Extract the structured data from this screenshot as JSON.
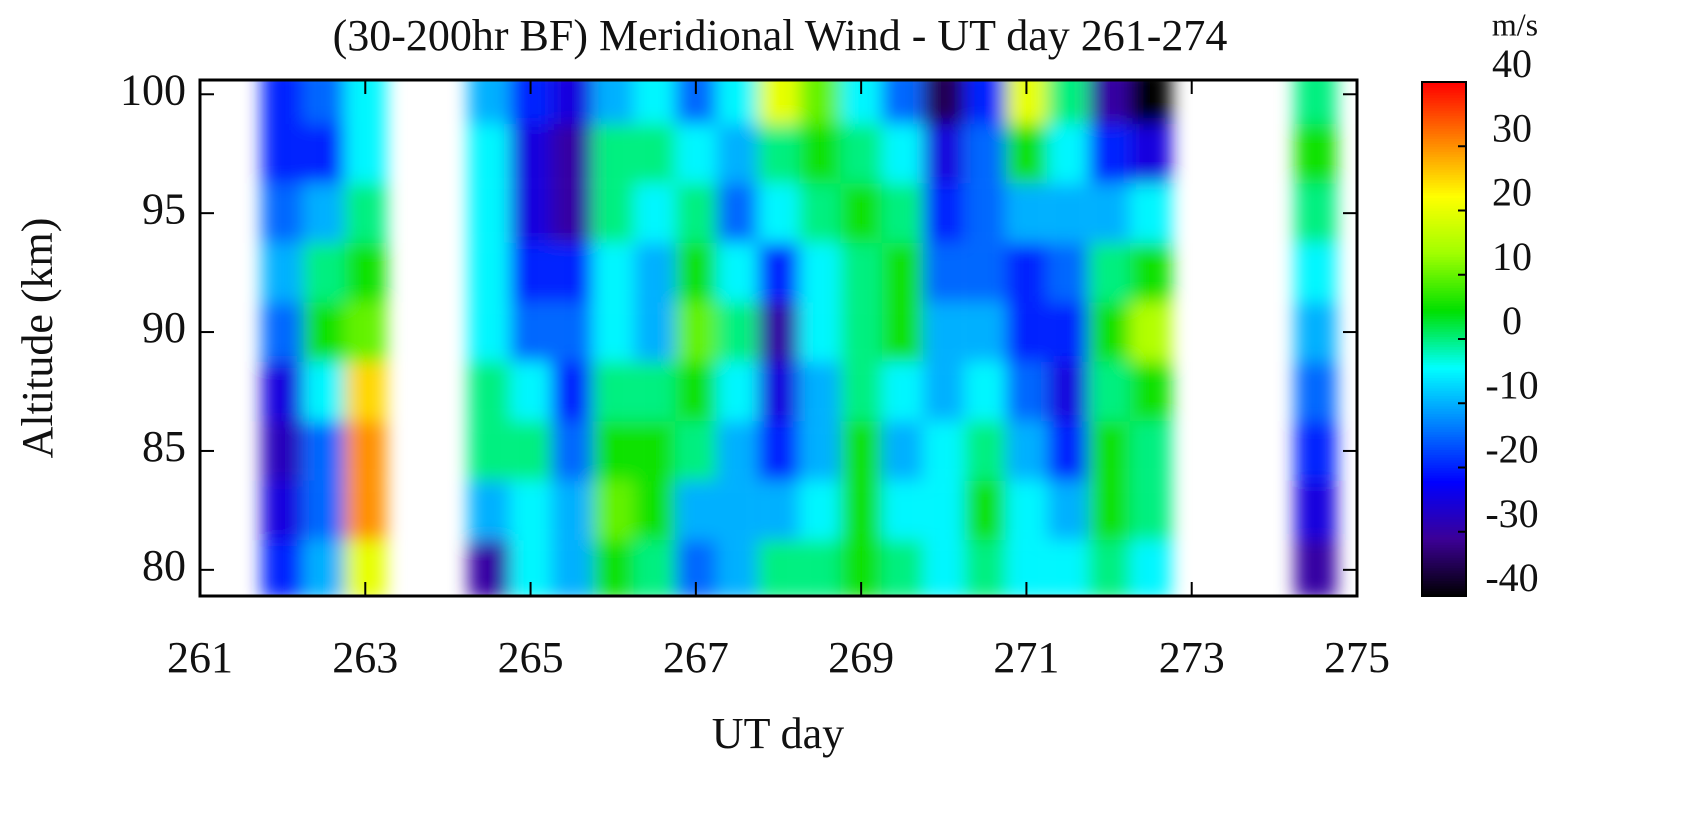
{
  "chart_data": {
    "type": "contour",
    "title": "(30-200hr BF) Meridional Wind - UT day 261-274",
    "x_label": "UT day",
    "y_label": "Altitude (km)",
    "colorbar_label": "m/s",
    "xlim": [
      261,
      275
    ],
    "xticks": [
      261,
      263,
      265,
      267,
      269,
      271,
      273,
      275
    ],
    "ylim": [
      78.9,
      100.6
    ],
    "yticks": [
      80,
      85,
      90,
      95,
      100
    ],
    "zlim": [
      -40,
      40
    ],
    "zticks": [
      -40,
      -30,
      -20,
      -10,
      0,
      10,
      20,
      30,
      40
    ],
    "colormap": [
      "#000000",
      "#3c0096",
      "#0000ff",
      "#0080ff",
      "#00ffff",
      "#00e000",
      "#a0ff00",
      "#ffff00",
      "#ff8000",
      "#ff0000"
    ],
    "x": [
      261,
      261.5,
      262,
      262.5,
      263,
      263.5,
      264,
      264.5,
      265,
      265.5,
      266,
      266.5,
      267,
      267.5,
      268,
      268.5,
      269,
      269.5,
      270,
      270.5,
      271,
      271.5,
      272,
      272.5,
      273,
      273.5,
      274,
      274.5,
      275
    ],
    "y": [
      80,
      82.5,
      85,
      87.5,
      90,
      92.5,
      95,
      97.5,
      100
    ],
    "z": [
      null,
      null,
      [
        -20,
        -25,
        -28,
        -25,
        -15,
        -10,
        -15,
        -20,
        -20
      ],
      [
        -10,
        -15,
        -15,
        -5,
        5,
        0,
        -10,
        -20,
        -15
      ],
      [
        20,
        30,
        30,
        25,
        10,
        5,
        0,
        -5,
        -5
      ],
      null,
      null,
      [
        -30,
        -10,
        0,
        0,
        -5,
        -5,
        -5,
        -5,
        -10
      ],
      [
        -5,
        -5,
        0,
        -5,
        -15,
        -20,
        -25,
        -25,
        -20
      ],
      [
        -10,
        -10,
        -15,
        -20,
        -15,
        -20,
        -30,
        -30,
        -25
      ],
      [
        5,
        10,
        5,
        0,
        -5,
        -5,
        0,
        0,
        -10
      ],
      [
        0,
        5,
        5,
        0,
        -10,
        -10,
        -5,
        0,
        -5
      ],
      [
        -15,
        -10,
        0,
        5,
        10,
        5,
        0,
        -5,
        -15
      ],
      [
        -10,
        -10,
        -10,
        -5,
        0,
        -5,
        -15,
        -10,
        -5
      ],
      [
        0,
        -10,
        -20,
        -25,
        -30,
        -20,
        -5,
        0,
        20
      ],
      [
        0,
        -5,
        -10,
        -10,
        -5,
        -5,
        0,
        5,
        10
      ],
      [
        5,
        5,
        5,
        0,
        0,
        0,
        5,
        0,
        -5
      ],
      [
        0,
        -5,
        -10,
        -5,
        5,
        5,
        0,
        -5,
        -15
      ],
      [
        -5,
        -5,
        -5,
        -10,
        -10,
        -15,
        -20,
        -25,
        -35
      ],
      [
        0,
        5,
        0,
        -5,
        -10,
        -15,
        -15,
        -15,
        -20
      ],
      [
        -5,
        -5,
        -10,
        -15,
        -20,
        -20,
        -10,
        5,
        20
      ],
      [
        -5,
        -10,
        -20,
        -25,
        -20,
        -15,
        -10,
        -5,
        0
      ],
      [
        0,
        5,
        5,
        0,
        5,
        0,
        -10,
        -20,
        -30
      ],
      [
        -5,
        0,
        0,
        5,
        15,
        5,
        -5,
        -25,
        -45
      ],
      null,
      null,
      null,
      [
        -30,
        -25,
        -20,
        -15,
        -10,
        -5,
        0,
        5,
        0
      ],
      null
    ]
  }
}
